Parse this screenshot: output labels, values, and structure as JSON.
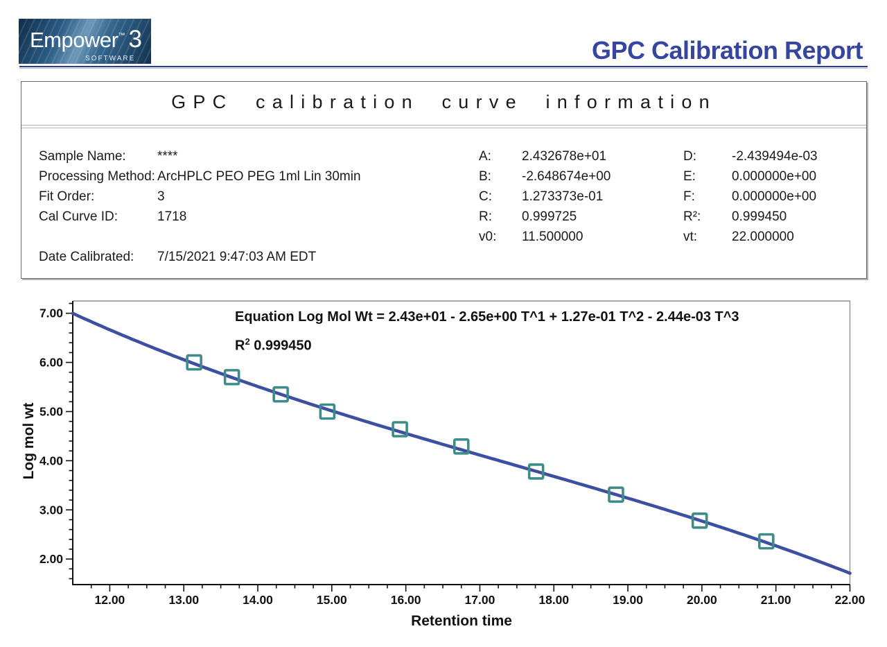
{
  "header": {
    "logo": {
      "brand": "Empower",
      "trademark": "™",
      "version": "3",
      "tagline": "SOFTWARE"
    },
    "report_title": "GPC Calibration Report"
  },
  "info_panel": {
    "title": "GPC calibration curve information",
    "sample_fields": [
      {
        "label": "Sample Name:",
        "value": "****"
      },
      {
        "label": "Processing Method:",
        "value": "ArcHPLC PEO PEG 1ml Lin 30min"
      },
      {
        "label": "Fit Order:",
        "value": "3"
      },
      {
        "label": "Cal Curve ID:",
        "value": "1718"
      }
    ],
    "date_field": {
      "label": "Date Calibrated:",
      "value": "7/15/2021 9:47:03 AM EDT"
    },
    "coefficients_col1": [
      {
        "label": "A:",
        "value": "2.432678e+01"
      },
      {
        "label": "B:",
        "value": "-2.648674e+00"
      },
      {
        "label": "C:",
        "value": "1.273373e-01"
      },
      {
        "label": "R:",
        "value": "0.999725"
      },
      {
        "label": "v0:",
        "value": "11.500000"
      }
    ],
    "coefficients_col2": [
      {
        "label": "D:",
        "value": "-2.439494e-03"
      },
      {
        "label": "E:",
        "value": "0.000000e+00"
      },
      {
        "label": "F:",
        "value": "0.000000e+00"
      },
      {
        "label": "R²:",
        "value": "0.999450"
      },
      {
        "label": "vt:",
        "value": "22.000000"
      }
    ]
  },
  "chart_data": {
    "type": "scatter",
    "title": "",
    "xlabel": "Retention time",
    "ylabel": "Log mol wt",
    "xlim": [
      11.5,
      22.0
    ],
    "ylim": [
      1.48,
      7.25
    ],
    "grid": false,
    "legend": "none",
    "x_ticks": [
      {
        "v": 12,
        "label": "12.00"
      },
      {
        "v": 13,
        "label": "13.00"
      },
      {
        "v": 14,
        "label": "14.00"
      },
      {
        "v": 15,
        "label": "15.00"
      },
      {
        "v": 16,
        "label": "16.00"
      },
      {
        "v": 17,
        "label": "17.00"
      },
      {
        "v": 18,
        "label": "18.00"
      },
      {
        "v": 19,
        "label": "19.00"
      },
      {
        "v": 20,
        "label": "20.00"
      },
      {
        "v": 21,
        "label": "21.00"
      },
      {
        "v": 22,
        "label": "22.00"
      }
    ],
    "y_ticks": [
      {
        "v": 2,
        "label": "2.00"
      },
      {
        "v": 3,
        "label": "3.00"
      },
      {
        "v": 4,
        "label": "4.00"
      },
      {
        "v": 5,
        "label": "5.00"
      },
      {
        "v": 6,
        "label": "6.00"
      },
      {
        "v": 7,
        "label": "7.00"
      }
    ],
    "x_minor_step": 0.25,
    "y_minor_step": 0.2,
    "equation_text": "Equation Log Mol Wt = 2.43e+01 - 2.65e+00 T^1 + 1.27e-01 T^2 - 2.44e-03 T^3",
    "r_squared": {
      "base": "R",
      "sup": "2",
      "value": "0.999450"
    },
    "fit_curve": {
      "type": "cubic",
      "coefficients": [
        24.32678,
        -2.648674,
        0.1273373,
        -0.002439494
      ],
      "x_start": 11.5,
      "x_end": 22.0,
      "color": "#3d4fa1"
    },
    "points": [
      {
        "x": 13.14,
        "y": 6.0
      },
      {
        "x": 13.65,
        "y": 5.7
      },
      {
        "x": 14.31,
        "y": 5.35
      },
      {
        "x": 14.94,
        "y": 5.0
      },
      {
        "x": 15.92,
        "y": 4.64
      },
      {
        "x": 16.75,
        "y": 4.29
      },
      {
        "x": 17.76,
        "y": 3.78
      },
      {
        "x": 18.84,
        "y": 3.31
      },
      {
        "x": 19.97,
        "y": 2.78
      },
      {
        "x": 20.87,
        "y": 2.36
      }
    ],
    "marker": {
      "shape": "open-square",
      "color": "#3e8b89",
      "size": 20
    }
  },
  "colors": {
    "report_title": "#3645a0",
    "header_rule": "#2b3a96",
    "curve": "#3d4fa1",
    "marker": "#3e8b89",
    "text": "#1a1a1a"
  }
}
